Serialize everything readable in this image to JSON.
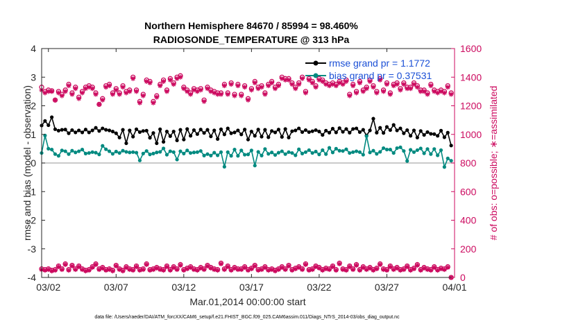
{
  "chart_data": {
    "type": "line",
    "title": "Northern Hemisphere 84670 / 85994 = 98.460%",
    "subtitle": "RADIOSONDE_TEMPERATURE @ 313 hPa",
    "xlabel": "Mar.01,2014 00:00:00 start",
    "ylabel": "rmse and bias (model - observation)",
    "ylabel_right": "# of obs: o=possible; ∗=assimilated",
    "footnote": "data file: /Users/raeder/DAI/ATM_forcXX/CAM6_setup/f.e21.FHIST_BGC.f09_025.CAM6assim.011/Diags_NTrS_2014-03/obs_diag_output.nc",
    "x_ticks": [
      "03/02",
      "03/07",
      "03/12",
      "03/17",
      "03/22",
      "03/27",
      "04/01"
    ],
    "x_tick_day": [
      2,
      7,
      12,
      17,
      22,
      27,
      32
    ],
    "xlim_day": [
      1.5,
      32
    ],
    "y_left_ticks": [
      "4",
      "3",
      "2",
      "1",
      "0",
      "-1",
      "-2",
      "-3",
      "-4"
    ],
    "y_left_values": [
      4,
      3,
      2,
      1,
      0,
      -1,
      -2,
      -3,
      -4
    ],
    "ylim_left": [
      -4,
      4
    ],
    "y_right_ticks": [
      "1600",
      "1400",
      "1200",
      "1000",
      "800",
      "600",
      "400",
      "200",
      "0"
    ],
    "y_right_values": [
      1600,
      1400,
      1200,
      1000,
      800,
      600,
      400,
      200,
      0
    ],
    "ylim_right": [
      0,
      1600
    ],
    "time_step_days": 0.25,
    "time_start_day": 1.5,
    "legend": [
      {
        "name": "rmse grand pr = 1.1772",
        "color": "#000000"
      },
      {
        "name": "bias grand pr = 0.37531",
        "color": "#008a80"
      }
    ],
    "series": [
      {
        "key": "rmse",
        "axis": "left",
        "color": "#000000",
        "marker": "circle",
        "values": [
          1.31,
          1.47,
          1.32,
          1.6,
          1.18,
          1.13,
          1.16,
          1.17,
          1.04,
          1.15,
          1.07,
          1.14,
          1.07,
          1.17,
          1.07,
          1.14,
          1.23,
          1.12,
          1.21,
          1.16,
          1.14,
          1.1,
          1.04,
          0.89,
          1.16,
          0.69,
          1.14,
          0.92,
          1.18,
          1.08,
          1.12,
          1.13,
          0.88,
          1.05,
          0.69,
          1.18,
          0.74,
          1.1,
          0.94,
          1.1,
          0.79,
          1.16,
          0.82,
          1.19,
          0.95,
          1.15,
          1.01,
          1.17,
          1.05,
          1.16,
          0.93,
          1.14,
          0.84,
          1.18,
          1.0,
          1.21,
          1.04,
          1.07,
          1.14,
          1.0,
          1.17,
          0.82,
          1.1,
          0.95,
          1.17,
          0.92,
          1.16,
          0.9,
          1.12,
          1.07,
          1.17,
          0.91,
          1.19,
          0.89,
          1.11,
          1.14,
          1.21,
          1.08,
          1.15,
          1.08,
          1.11,
          1.15,
          1.1,
          0.98,
          1.13,
          1.06,
          1.2,
          1.07,
          1.22,
          1.09,
          1.19,
          1.06,
          1.19,
          1.21,
          1.08,
          1.16,
          0.96,
          1.14,
          1.55,
          1.06,
          1.23,
          1.05,
          1.26,
          1.15,
          1.33,
          1.14,
          1.21,
          1.04,
          1.15,
          0.95,
          1.14,
          0.89,
          1.12,
          0.98,
          1.08,
          1.02,
          1.01,
          0.95,
          1.13,
          0.9,
          1.06,
          0.61
        ]
      },
      {
        "key": "bias",
        "axis": "left",
        "color": "#008a80",
        "marker": "circle",
        "values": [
          0.35,
          0.96,
          0.5,
          0.47,
          0.31,
          0.25,
          0.44,
          0.41,
          0.31,
          0.43,
          0.37,
          0.41,
          0.47,
          0.33,
          0.35,
          0.38,
          0.36,
          0.3,
          0.6,
          0.48,
          0.41,
          0.32,
          0.4,
          0.35,
          0.43,
          0.39,
          0.37,
          0.38,
          0.36,
          0.09,
          0.33,
          0.42,
          0.3,
          0.33,
          0.37,
          0.39,
          0.51,
          0.29,
          0.41,
          0.38,
          0.12,
          0.41,
          0.33,
          0.44,
          0.35,
          0.37,
          0.38,
          0.42,
          0.26,
          0.31,
          0.26,
          0.36,
          0.27,
          0.38,
          -0.13,
          0.38,
          0.25,
          0.47,
          0.25,
          0.44,
          0.29,
          0.3,
          0.44,
          -0.09,
          0.39,
          0.26,
          0.49,
          0.32,
          0.37,
          0.28,
          0.36,
          0.41,
          0.31,
          0.38,
          0.35,
          0.27,
          0.48,
          0.33,
          0.38,
          0.45,
          0.35,
          0.4,
          0.3,
          0.45,
          0.31,
          0.53,
          0.37,
          0.5,
          0.43,
          0.42,
          0.48,
          0.35,
          0.38,
          0.41,
          0.38,
          0.29,
          0.94,
          0.37,
          0.43,
          0.32,
          0.39,
          0.52,
          0.47,
          0.47,
          0.35,
          0.52,
          0.55,
          0.42,
          0.07,
          0.46,
          0.38,
          0.45,
          0.51,
          0.34,
          0.49,
          0.31,
          0.49,
          0.27,
          0.45,
          -0.14,
          0.16,
          0.08
        ]
      },
      {
        "key": "obs_possible",
        "axis": "right",
        "color": "#cc0a5f",
        "marker": "open-circle",
        "values": [
          1330,
          1300,
          1310,
          1305,
          1240,
          1300,
          1280,
          1310,
          1350,
          1290,
          1330,
          1260,
          1300,
          1330,
          1340,
          1330,
          1290,
          1210,
          1250,
          1340,
          1350,
          1290,
          1320,
          1290,
          1340,
          1300,
          1310,
          1400,
          1310,
          1230,
          1280,
          1380,
          1370,
          1230,
          1270,
          1350,
          1380,
          1310,
          1390,
          1360,
          1400,
          1410,
          1330,
          1310,
          1290,
          1320,
          1310,
          1320,
          1240,
          1330,
          1310,
          1300,
          1290,
          1290,
          1350,
          1290,
          1360,
          1280,
          1350,
          1280,
          1340,
          1250,
          1320,
          1370,
          1330,
          1340,
          1290,
          1350,
          1370,
          1330,
          1350,
          1400,
          1390,
          1390,
          1360,
          1330,
          1360,
          1400,
          1300,
          1390,
          1370,
          1340,
          1390,
          1380,
          1360,
          1350,
          1360,
          1350,
          1370,
          1360,
          1380,
          1280,
          1350,
          1300,
          1370,
          1310,
          1330,
          1380,
          1340,
          1300,
          1390,
          1310,
          1360,
          1290,
          1350,
          1360,
          1320,
          1360,
          1330,
          1330,
          1360,
          1340,
          1310,
          1310,
          1290,
          1350,
          1310,
          1300,
          1310,
          1300,
          1340,
          1290
        ]
      },
      {
        "key": "obs_assimilated",
        "axis": "right",
        "color": "#cc0a5f",
        "marker": "asterisk",
        "values": [
          1310,
          1290,
          1300,
          1300,
          1240,
          1290,
          1270,
          1300,
          1340,
          1280,
          1320,
          1250,
          1290,
          1320,
          1330,
          1320,
          1280,
          1210,
          1240,
          1330,
          1340,
          1280,
          1310,
          1280,
          1330,
          1290,
          1300,
          1390,
          1300,
          1220,
          1270,
          1370,
          1360,
          1220,
          1260,
          1340,
          1370,
          1300,
          1380,
          1350,
          1390,
          1400,
          1320,
          1300,
          1280,
          1310,
          1300,
          1310,
          1230,
          1320,
          1300,
          1290,
          1280,
          1280,
          1340,
          1280,
          1350,
          1270,
          1340,
          1270,
          1330,
          1240,
          1310,
          1360,
          1320,
          1330,
          1280,
          1340,
          1360,
          1320,
          1340,
          1390,
          1380,
          1380,
          1350,
          1320,
          1350,
          1390,
          1290,
          1380,
          1360,
          1330,
          1380,
          1370,
          1350,
          1340,
          1350,
          1340,
          1360,
          1350,
          1370,
          1270,
          1340,
          1290,
          1360,
          1300,
          1320,
          1370,
          1330,
          1290,
          1380,
          1300,
          1350,
          1280,
          1340,
          1350,
          1310,
          1350,
          1320,
          1320,
          1350,
          1330,
          1300,
          1300,
          1280,
          1340,
          1300,
          1290,
          1300,
          1290,
          1330,
          1280
        ]
      },
      {
        "key": "obs_possible_low",
        "axis": "right",
        "color": "#cc0a5f",
        "marker": "open-circle",
        "values": [
          60,
          55,
          60,
          50,
          55,
          80,
          60,
          95,
          55,
          85,
          60,
          80,
          60,
          50,
          55,
          75,
          95,
          60,
          70,
          55,
          60,
          50,
          85,
          60,
          50,
          75,
          60,
          55,
          80,
          55,
          60,
          95,
          55,
          60,
          70,
          60,
          55,
          80,
          55,
          75,
          60,
          90,
          55,
          65,
          75,
          60,
          55,
          70,
          60,
          85,
          70,
          60,
          55,
          100,
          60,
          80,
          55,
          70,
          60,
          60,
          75,
          55,
          65,
          85,
          55,
          60,
          75,
          55,
          60,
          50,
          60,
          75,
          60,
          85,
          55,
          65,
          75,
          60,
          95,
          55,
          60,
          80,
          70,
          55,
          65,
          60,
          80,
          55,
          100,
          60,
          55,
          80,
          60,
          90,
          55,
          75,
          60,
          70,
          55,
          65,
          95,
          60,
          55,
          80,
          60,
          70,
          55,
          60,
          80,
          55,
          65,
          90,
          55,
          70,
          60,
          55,
          75,
          55,
          65,
          60,
          75,
          0
        ]
      },
      {
        "key": "obs_assimilated_low",
        "axis": "right",
        "color": "#cc0a5f",
        "marker": "asterisk",
        "values": [
          55,
          50,
          55,
          45,
          50,
          75,
          55,
          90,
          50,
          80,
          55,
          75,
          55,
          45,
          50,
          70,
          90,
          55,
          65,
          50,
          55,
          45,
          80,
          55,
          45,
          70,
          55,
          50,
          75,
          50,
          55,
          90,
          50,
          55,
          65,
          55,
          50,
          75,
          50,
          70,
          55,
          85,
          50,
          60,
          70,
          55,
          50,
          65,
          55,
          80,
          65,
          55,
          50,
          95,
          55,
          75,
          50,
          65,
          55,
          55,
          70,
          50,
          60,
          80,
          50,
          55,
          70,
          50,
          55,
          45,
          55,
          70,
          55,
          80,
          50,
          60,
          70,
          55,
          90,
          50,
          55,
          75,
          65,
          50,
          60,
          55,
          75,
          50,
          95,
          55,
          50,
          75,
          55,
          85,
          50,
          70,
          55,
          65,
          50,
          60,
          90,
          55,
          50,
          75,
          55,
          65,
          50,
          55,
          75,
          50,
          60,
          85,
          50,
          65,
          55,
          50,
          70,
          50,
          60,
          55,
          70,
          0
        ]
      }
    ]
  }
}
